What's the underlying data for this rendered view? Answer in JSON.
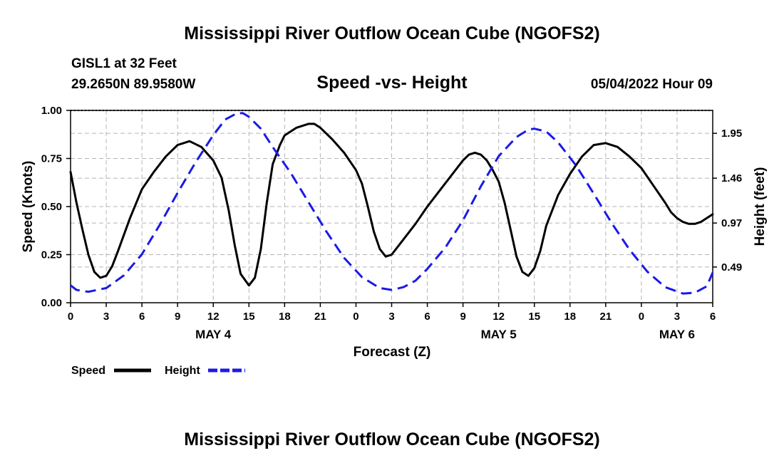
{
  "chart_data": {
    "type": "line",
    "title": "Mississippi River Outflow Ocean Cube (NGOFS2)",
    "footer_title": "Mississippi River Outflow Ocean Cube (NGOFS2)",
    "subtitle": "Speed -vs- Height",
    "station": "GISL1 at 32 Feet",
    "location": "29.2650N  89.9580W",
    "date_label": "05/04/2022 Hour 09",
    "xlabel": "Forecast (Z)",
    "ylabel_left": "Speed (Knots)",
    "ylabel_right": "Height (feet)",
    "x_range_hours": [
      0,
      54
    ],
    "ylim_left": [
      0,
      1
    ],
    "ylim_right": [
      0.1,
      2.2
    ],
    "yticks_left": [
      "0.00",
      "0.25",
      "0.50",
      "0.75",
      "1.00"
    ],
    "yticks_right": [
      {
        "value": 0.49,
        "label": "0.49"
      },
      {
        "value": 0.97,
        "label": "0.97"
      },
      {
        "value": 1.46,
        "label": "1.46"
      },
      {
        "value": 1.95,
        "label": "1.95"
      }
    ],
    "xtick_labels": [
      "0",
      "3",
      "6",
      "9",
      "12",
      "15",
      "18",
      "21",
      "0",
      "3",
      "6",
      "9",
      "12",
      "15",
      "18",
      "21",
      "0",
      "3",
      "6"
    ],
    "day_labels": [
      {
        "hour": 12,
        "label": "MAY 4"
      },
      {
        "hour": 36,
        "label": "MAY 5"
      },
      {
        "hour": 51,
        "label": "MAY 6"
      }
    ],
    "grid": true,
    "legend_position": "bottom-left",
    "series": [
      {
        "name": "Speed",
        "axis": "left",
        "color": "#000000",
        "style": "solid",
        "points": [
          [
            0,
            0.68
          ],
          [
            0.5,
            0.52
          ],
          [
            1,
            0.38
          ],
          [
            1.5,
            0.25
          ],
          [
            2,
            0.16
          ],
          [
            2.5,
            0.13
          ],
          [
            3,
            0.14
          ],
          [
            3.5,
            0.19
          ],
          [
            4,
            0.27
          ],
          [
            5,
            0.44
          ],
          [
            6,
            0.59
          ],
          [
            7,
            0.68
          ],
          [
            8,
            0.76
          ],
          [
            9,
            0.82
          ],
          [
            10,
            0.84
          ],
          [
            11,
            0.81
          ],
          [
            12,
            0.74
          ],
          [
            12.7,
            0.65
          ],
          [
            13.3,
            0.48
          ],
          [
            13.8,
            0.3
          ],
          [
            14.3,
            0.15
          ],
          [
            15,
            0.09
          ],
          [
            15.5,
            0.13
          ],
          [
            16,
            0.28
          ],
          [
            16.5,
            0.52
          ],
          [
            17,
            0.72
          ],
          [
            17.6,
            0.82
          ],
          [
            18,
            0.87
          ],
          [
            19,
            0.91
          ],
          [
            20,
            0.93
          ],
          [
            20.5,
            0.93
          ],
          [
            21,
            0.91
          ],
          [
            22,
            0.85
          ],
          [
            23,
            0.78
          ],
          [
            24,
            0.69
          ],
          [
            24.5,
            0.62
          ],
          [
            25,
            0.5
          ],
          [
            25.5,
            0.37
          ],
          [
            26,
            0.28
          ],
          [
            26.5,
            0.24
          ],
          [
            27,
            0.25
          ],
          [
            28,
            0.33
          ],
          [
            29,
            0.41
          ],
          [
            30,
            0.5
          ],
          [
            31,
            0.58
          ],
          [
            32,
            0.66
          ],
          [
            33,
            0.74
          ],
          [
            33.5,
            0.77
          ],
          [
            34,
            0.78
          ],
          [
            34.5,
            0.77
          ],
          [
            35,
            0.74
          ],
          [
            35.5,
            0.69
          ],
          [
            36,
            0.63
          ],
          [
            36.5,
            0.52
          ],
          [
            37,
            0.38
          ],
          [
            37.5,
            0.24
          ],
          [
            38,
            0.16
          ],
          [
            38.5,
            0.14
          ],
          [
            39,
            0.18
          ],
          [
            39.5,
            0.27
          ],
          [
            40,
            0.4
          ],
          [
            41,
            0.56
          ],
          [
            42,
            0.67
          ],
          [
            43,
            0.76
          ],
          [
            44,
            0.82
          ],
          [
            45,
            0.83
          ],
          [
            46,
            0.81
          ],
          [
            47,
            0.76
          ],
          [
            48,
            0.7
          ],
          [
            49,
            0.61
          ],
          [
            50,
            0.52
          ],
          [
            50.5,
            0.47
          ],
          [
            51,
            0.44
          ],
          [
            51.5,
            0.42
          ],
          [
            52,
            0.41
          ],
          [
            52.5,
            0.41
          ],
          [
            53,
            0.42
          ],
          [
            54,
            0.46
          ]
        ]
      },
      {
        "name": "Height",
        "axis": "right",
        "color": "#1a1ae6",
        "style": "dashed",
        "points": [
          [
            0,
            0.29
          ],
          [
            0.5,
            0.24
          ],
          [
            1.5,
            0.22
          ],
          [
            3,
            0.26
          ],
          [
            4.5,
            0.4
          ],
          [
            6,
            0.63
          ],
          [
            7.5,
            0.95
          ],
          [
            9,
            1.3
          ],
          [
            10.5,
            1.63
          ],
          [
            12,
            1.93
          ],
          [
            13,
            2.1
          ],
          [
            14,
            2.17
          ],
          [
            14.5,
            2.17
          ],
          [
            15,
            2.13
          ],
          [
            16,
            2.0
          ],
          [
            17,
            1.8
          ],
          [
            18.5,
            1.52
          ],
          [
            20,
            1.2
          ],
          [
            21.5,
            0.88
          ],
          [
            23,
            0.59
          ],
          [
            24.5,
            0.38
          ],
          [
            26,
            0.26
          ],
          [
            27,
            0.24
          ],
          [
            28,
            0.27
          ],
          [
            29,
            0.34
          ],
          [
            30,
            0.47
          ],
          [
            31.5,
            0.7
          ],
          [
            33,
            1.0
          ],
          [
            34.5,
            1.37
          ],
          [
            36,
            1.7
          ],
          [
            37.5,
            1.91
          ],
          [
            38.5,
            1.99
          ],
          [
            39,
            2.0
          ],
          [
            40,
            1.97
          ],
          [
            41,
            1.85
          ],
          [
            42.5,
            1.6
          ],
          [
            44,
            1.29
          ],
          [
            45.5,
            0.97
          ],
          [
            47,
            0.68
          ],
          [
            48.5,
            0.44
          ],
          [
            50,
            0.27
          ],
          [
            51.5,
            0.2
          ],
          [
            52.5,
            0.21
          ],
          [
            53.5,
            0.28
          ],
          [
            54,
            0.43
          ]
        ]
      }
    ]
  }
}
